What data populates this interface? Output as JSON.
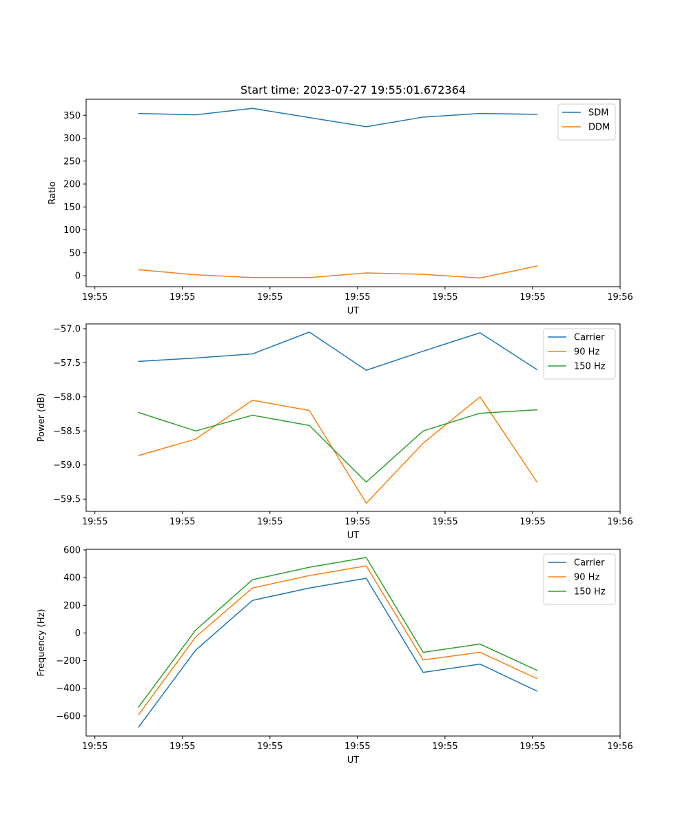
{
  "figure_title": "Start time: 2023-07-27 19:55:01.672364",
  "colors": {
    "tab_blue": "#1f77b4",
    "tab_orange": "#ff7f0e",
    "tab_green": "#2ca02c"
  },
  "chart_data": [
    {
      "type": "line",
      "title": "Start time: 2023-07-27 19:55:01.672364",
      "xlabel": "UT",
      "ylabel": "Ratio",
      "x": [
        0.5,
        1.15,
        1.8,
        2.45,
        3.1,
        3.75,
        4.4,
        5.05
      ],
      "xlim": [
        -0.1,
        6.0
      ],
      "x_ticks": [
        0,
        1,
        2,
        3,
        4,
        5,
        6
      ],
      "x_tick_labels": [
        "19:55",
        "19:55",
        "19:55",
        "19:55",
        "19:55",
        "19:55",
        "19:56"
      ],
      "ylim": [
        -24,
        385
      ],
      "y_ticks": [
        0,
        50,
        100,
        150,
        200,
        250,
        300,
        350
      ],
      "y_tick_labels": [
        "0",
        "50",
        "100",
        "150",
        "200",
        "250",
        "300",
        "350"
      ],
      "legend_position": "top-right",
      "series": [
        {
          "name": "SDM",
          "color": "#1f77b4",
          "values": [
            354,
            351,
            365,
            345,
            325,
            346,
            354,
            352
          ]
        },
        {
          "name": "DDM",
          "color": "#ff7f0e",
          "values": [
            13,
            2,
            -4,
            -4,
            6,
            3,
            -5,
            21
          ]
        }
      ]
    },
    {
      "type": "line",
      "title": "",
      "xlabel": "UT",
      "ylabel": "Power (dB)",
      "x": [
        0.5,
        1.15,
        1.8,
        2.45,
        3.1,
        3.75,
        4.4,
        5.05
      ],
      "xlim": [
        -0.1,
        6.0
      ],
      "x_ticks": [
        0,
        1,
        2,
        3,
        4,
        5,
        6
      ],
      "x_tick_labels": [
        "19:55",
        "19:55",
        "19:55",
        "19:55",
        "19:55",
        "19:55",
        "19:56"
      ],
      "ylim": [
        -59.68,
        -56.93
      ],
      "y_ticks": [
        -59.5,
        -59.0,
        -58.5,
        -58.0,
        -57.5,
        -57.0
      ],
      "y_tick_labels": [
        "−59.5",
        "−59.0",
        "−58.5",
        "−58.0",
        "−57.5",
        "−57.0"
      ],
      "legend_position": "top-right",
      "series": [
        {
          "name": "Carrier",
          "color": "#1f77b4",
          "values": [
            -57.48,
            -57.43,
            -57.37,
            -57.05,
            -57.61,
            -57.33,
            -57.06,
            -57.6
          ]
        },
        {
          "name": "90 Hz",
          "color": "#ff7f0e",
          "values": [
            -58.86,
            -58.62,
            -58.05,
            -58.2,
            -59.56,
            -58.68,
            -58.0,
            -59.25
          ]
        },
        {
          "name": "150 Hz",
          "color": "#2ca02c",
          "values": [
            -58.23,
            -58.5,
            -58.27,
            -58.42,
            -59.25,
            -58.5,
            -58.24,
            -58.19
          ]
        }
      ]
    },
    {
      "type": "line",
      "title": "",
      "xlabel": "UT",
      "ylabel": "Frequency (Hz)",
      "x": [
        0.5,
        1.15,
        1.8,
        2.45,
        3.1,
        3.75,
        4.4,
        5.05
      ],
      "xlim": [
        -0.1,
        6.0
      ],
      "x_ticks": [
        0,
        1,
        2,
        3,
        4,
        5,
        6
      ],
      "x_tick_labels": [
        "19:55",
        "19:55",
        "19:55",
        "19:55",
        "19:55",
        "19:55",
        "19:56"
      ],
      "ylim": [
        -745,
        605
      ],
      "y_ticks": [
        -600,
        -400,
        -200,
        0,
        200,
        400,
        600
      ],
      "y_tick_labels": [
        "−600",
        "−400",
        "−200",
        "0",
        "200",
        "400",
        "600"
      ],
      "legend_position": "top-right",
      "series": [
        {
          "name": "Carrier",
          "color": "#1f77b4",
          "values": [
            -680,
            -125,
            235,
            325,
            395,
            -285,
            -225,
            -420
          ]
        },
        {
          "name": "90 Hz",
          "color": "#ff7f0e",
          "values": [
            -590,
            -30,
            325,
            415,
            485,
            -195,
            -140,
            -330
          ]
        },
        {
          "name": "150 Hz",
          "color": "#2ca02c",
          "values": [
            -535,
            20,
            385,
            475,
            545,
            -140,
            -80,
            -270
          ]
        }
      ]
    }
  ]
}
